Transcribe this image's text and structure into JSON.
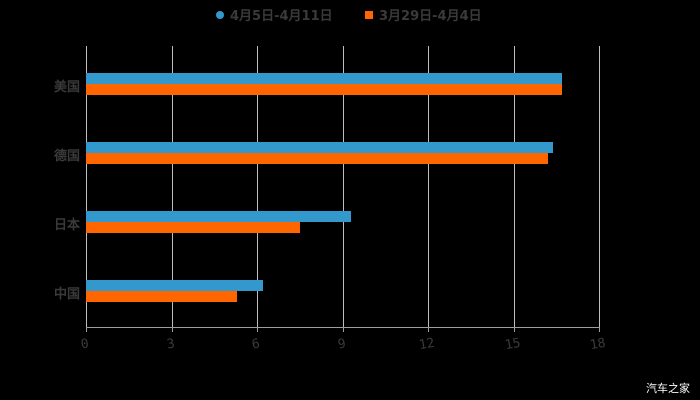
{
  "chart_data": {
    "type": "bar",
    "orientation": "horizontal",
    "title": "",
    "xlabel": "",
    "ylabel": "",
    "categories": [
      "美国",
      "德国",
      "日本",
      "中国"
    ],
    "series": [
      {
        "name": "4月5日-4月11日",
        "color": "#3399cc",
        "values": [
          16.7,
          16.4,
          9.3,
          6.2
        ]
      },
      {
        "name": "3月29日-4月4日",
        "color": "#ff6600",
        "values": [
          16.7,
          16.2,
          7.5,
          5.3
        ]
      }
    ],
    "xlim": [
      0,
      18
    ],
    "xticks": [
      "0",
      "3",
      "6",
      "9",
      "12",
      "15",
      "18"
    ],
    "grid": true,
    "legend_position": "top"
  },
  "legend": {
    "items": [
      {
        "label": "4月5日-4月11日",
        "color": "#3399cc",
        "shape": "circle"
      },
      {
        "label": "3月29日-4月4日",
        "color": "#ff6600",
        "shape": "square"
      }
    ]
  },
  "watermark": "汽车之家"
}
